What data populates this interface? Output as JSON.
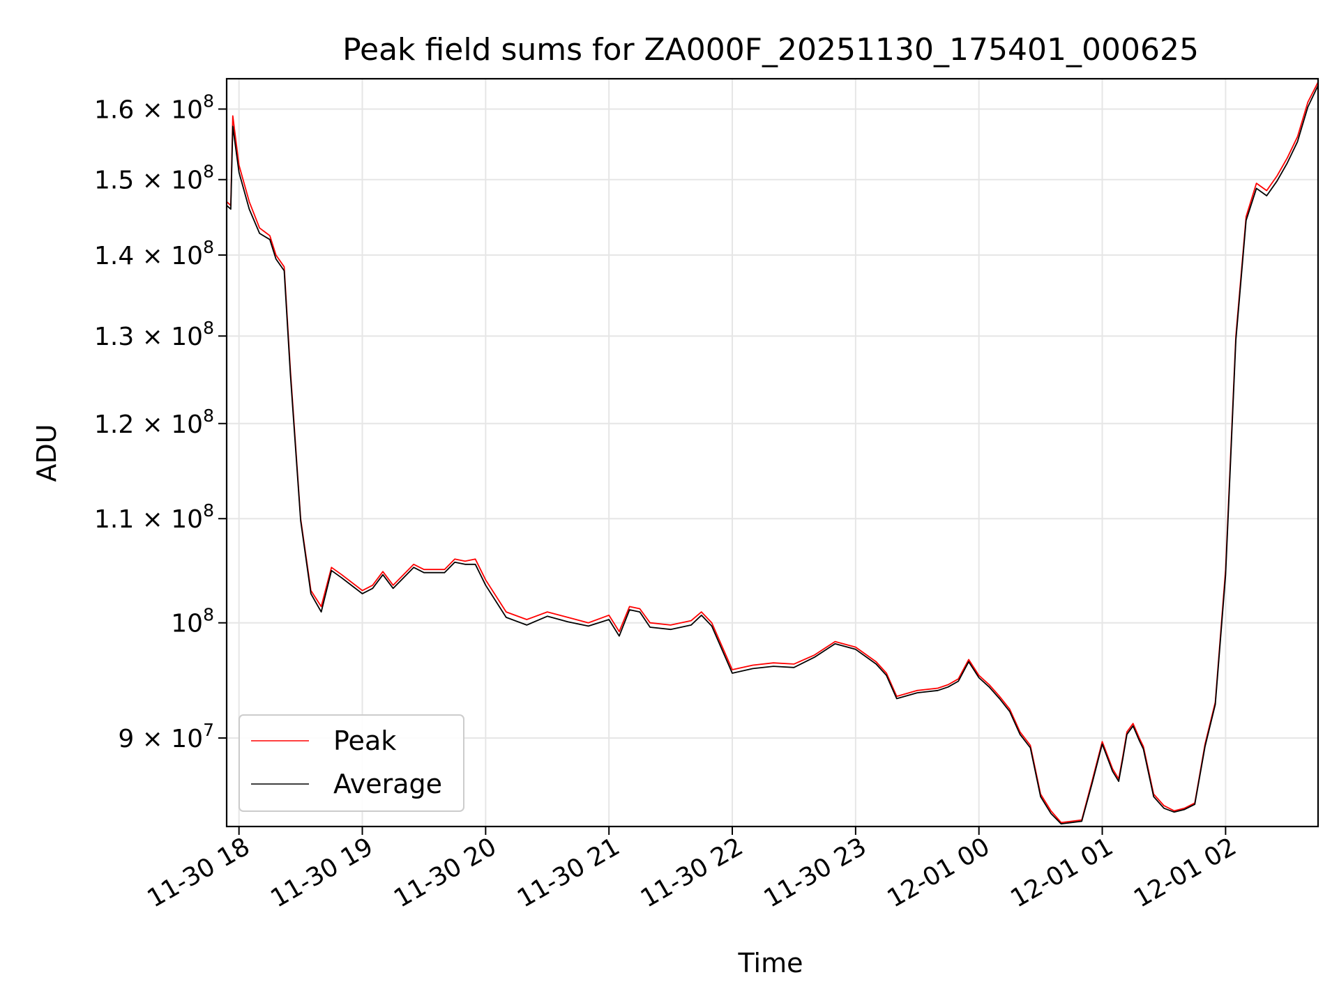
{
  "chart_data": {
    "type": "line",
    "title": "Peak field sums for ZA000F_20251130_175401_000625",
    "xlabel": "Time",
    "ylabel": "ADU",
    "yscale": "log",
    "ylim": [
      83000000,
      164500000
    ],
    "xlim": [
      "2025-11-30 17:54",
      "2025-12-01 02:45"
    ],
    "x_ticks": [
      "11-30 18",
      "11-30 19",
      "11-30 20",
      "11-30 21",
      "11-30 22",
      "11-30 23",
      "12-01 00",
      "12-01 01",
      "12-01 02"
    ],
    "y_ticks": [
      {
        "value": 90000000,
        "mantissa": "9",
        "exponent": "7"
      },
      {
        "value": 100000000,
        "mantissa": "",
        "exponent": "8"
      },
      {
        "value": 110000000,
        "mantissa": "1.1",
        "exponent": "8"
      },
      {
        "value": 120000000,
        "mantissa": "1.2",
        "exponent": "8"
      },
      {
        "value": 130000000,
        "mantissa": "1.3",
        "exponent": "8"
      },
      {
        "value": 140000000,
        "mantissa": "1.4",
        "exponent": "8"
      },
      {
        "value": 150000000,
        "mantissa": "1.5",
        "exponent": "8"
      },
      {
        "value": 160000000,
        "mantissa": "1.6",
        "exponent": "8"
      }
    ],
    "grid": true,
    "legend_position": "lower-left",
    "series": [
      {
        "name": "Peak",
        "color": "#ff0000",
        "x": [
          "2025-11-30 17:54",
          "2025-11-30 17:56",
          "2025-11-30 17:57",
          "2025-11-30 18:00",
          "2025-11-30 18:05",
          "2025-11-30 18:10",
          "2025-11-30 18:15",
          "2025-11-30 18:18",
          "2025-11-30 18:22",
          "2025-11-30 18:25",
          "2025-11-30 18:30",
          "2025-11-30 18:35",
          "2025-11-30 18:40",
          "2025-11-30 18:45",
          "2025-11-30 18:50",
          "2025-11-30 19:00",
          "2025-11-30 19:05",
          "2025-11-30 19:10",
          "2025-11-30 19:15",
          "2025-11-30 19:20",
          "2025-11-30 19:25",
          "2025-11-30 19:30",
          "2025-11-30 19:40",
          "2025-11-30 19:45",
          "2025-11-30 19:50",
          "2025-11-30 19:55",
          "2025-11-30 20:00",
          "2025-11-30 20:10",
          "2025-11-30 20:20",
          "2025-11-30 20:30",
          "2025-11-30 20:40",
          "2025-11-30 20:50",
          "2025-11-30 21:00",
          "2025-11-30 21:05",
          "2025-11-30 21:10",
          "2025-11-30 21:15",
          "2025-11-30 21:20",
          "2025-11-30 21:30",
          "2025-11-30 21:40",
          "2025-11-30 21:45",
          "2025-11-30 21:50",
          "2025-11-30 22:00",
          "2025-11-30 22:10",
          "2025-11-30 22:20",
          "2025-11-30 22:30",
          "2025-11-30 22:40",
          "2025-11-30 22:50",
          "2025-11-30 23:00",
          "2025-11-30 23:10",
          "2025-11-30 23:15",
          "2025-11-30 23:20",
          "2025-11-30 23:30",
          "2025-11-30 23:40",
          "2025-11-30 23:45",
          "2025-11-30 23:50",
          "2025-11-30 23:55",
          "2025-12-01 00:00",
          "2025-12-01 00:05",
          "2025-12-01 00:10",
          "2025-12-01 00:15",
          "2025-12-01 00:20",
          "2025-12-01 00:25",
          "2025-12-01 00:30",
          "2025-12-01 00:35",
          "2025-12-01 00:40",
          "2025-12-01 00:45",
          "2025-12-01 00:50",
          "2025-12-01 00:55",
          "2025-12-01 01:00",
          "2025-12-01 01:05",
          "2025-12-01 01:08",
          "2025-12-01 01:10",
          "2025-12-01 01:12",
          "2025-12-01 01:15",
          "2025-12-01 01:18",
          "2025-12-01 01:20",
          "2025-12-01 01:25",
          "2025-12-01 01:30",
          "2025-12-01 01:35",
          "2025-12-01 01:40",
          "2025-12-01 01:45",
          "2025-12-01 01:50",
          "2025-12-01 01:55",
          "2025-12-01 02:00",
          "2025-12-01 02:05",
          "2025-12-01 02:10",
          "2025-12-01 02:15",
          "2025-12-01 02:20",
          "2025-12-01 02:25",
          "2025-12-01 02:30",
          "2025-12-01 02:35",
          "2025-12-01 02:40",
          "2025-12-01 02:45"
        ],
        "y": [
          147000000,
          146500000,
          159000000,
          152000000,
          147000000,
          143500000,
          142500000,
          140000000,
          138500000,
          126000000,
          110000000,
          103000000,
          101500000,
          105200000,
          104500000,
          103000000,
          103500000,
          104800000,
          103500000,
          104500000,
          105500000,
          105000000,
          105000000,
          106000000,
          105800000,
          106000000,
          104000000,
          101000000,
          100300000,
          101000000,
          100500000,
          100000000,
          100700000,
          99200000,
          101500000,
          101300000,
          100000000,
          99800000,
          100200000,
          101000000,
          100000000,
          95800000,
          96200000,
          96400000,
          96300000,
          97100000,
          98300000,
          97800000,
          96500000,
          95500000,
          93500000,
          94000000,
          94200000,
          94500000,
          95000000,
          96700000,
          95300000,
          94500000,
          93500000,
          92400000,
          90500000,
          89400000,
          85500000,
          84200000,
          83300000,
          83400000,
          83500000,
          86500000,
          89700000,
          87500000,
          86700000,
          88500000,
          90500000,
          91200000,
          90000000,
          89300000,
          85500000,
          84600000,
          84200000,
          84400000,
          84800000,
          89500000,
          93000000,
          105000000,
          130000000,
          145000000,
          149500000,
          148500000,
          150500000,
          153000000,
          156000000,
          161000000,
          164000000
        ]
      },
      {
        "name": "Average",
        "color": "#000000",
        "x": [
          "2025-11-30 17:54",
          "2025-11-30 17:56",
          "2025-11-30 17:57",
          "2025-11-30 18:00",
          "2025-11-30 18:05",
          "2025-11-30 18:10",
          "2025-11-30 18:15",
          "2025-11-30 18:18",
          "2025-11-30 18:22",
          "2025-11-30 18:25",
          "2025-11-30 18:30",
          "2025-11-30 18:35",
          "2025-11-30 18:40",
          "2025-11-30 18:45",
          "2025-11-30 18:50",
          "2025-11-30 19:00",
          "2025-11-30 19:05",
          "2025-11-30 19:10",
          "2025-11-30 19:15",
          "2025-11-30 19:20",
          "2025-11-30 19:25",
          "2025-11-30 19:30",
          "2025-11-30 19:40",
          "2025-11-30 19:45",
          "2025-11-30 19:50",
          "2025-11-30 19:55",
          "2025-11-30 20:00",
          "2025-11-30 20:10",
          "2025-11-30 20:20",
          "2025-11-30 20:30",
          "2025-11-30 20:40",
          "2025-11-30 20:50",
          "2025-11-30 21:00",
          "2025-11-30 21:05",
          "2025-11-30 21:10",
          "2025-11-30 21:15",
          "2025-11-30 21:20",
          "2025-11-30 21:30",
          "2025-11-30 21:40",
          "2025-11-30 21:45",
          "2025-11-30 21:50",
          "2025-11-30 22:00",
          "2025-11-30 22:10",
          "2025-11-30 22:20",
          "2025-11-30 22:30",
          "2025-11-30 22:40",
          "2025-11-30 22:50",
          "2025-11-30 23:00",
          "2025-11-30 23:10",
          "2025-11-30 23:15",
          "2025-11-30 23:20",
          "2025-11-30 23:30",
          "2025-11-30 23:40",
          "2025-11-30 23:45",
          "2025-11-30 23:50",
          "2025-11-30 23:55",
          "2025-12-01 00:00",
          "2025-12-01 00:05",
          "2025-12-01 00:10",
          "2025-12-01 00:15",
          "2025-12-01 00:20",
          "2025-12-01 00:25",
          "2025-12-01 00:30",
          "2025-12-01 00:35",
          "2025-12-01 00:40",
          "2025-12-01 00:45",
          "2025-12-01 00:50",
          "2025-12-01 00:55",
          "2025-12-01 01:00",
          "2025-12-01 01:05",
          "2025-12-01 01:08",
          "2025-12-01 01:10",
          "2025-12-01 01:12",
          "2025-12-01 01:15",
          "2025-12-01 01:18",
          "2025-12-01 01:20",
          "2025-12-01 01:25",
          "2025-12-01 01:30",
          "2025-12-01 01:35",
          "2025-12-01 01:40",
          "2025-12-01 01:45",
          "2025-12-01 01:50",
          "2025-12-01 01:55",
          "2025-12-01 02:00",
          "2025-12-01 02:05",
          "2025-12-01 02:10",
          "2025-12-01 02:15",
          "2025-12-01 02:20",
          "2025-12-01 02:25",
          "2025-12-01 02:30",
          "2025-12-01 02:35",
          "2025-12-01 02:40",
          "2025-12-01 02:45"
        ],
        "y": [
          146500000,
          146000000,
          157500000,
          151000000,
          146000000,
          142800000,
          142000000,
          139500000,
          138000000,
          125500000,
          109800000,
          102700000,
          101000000,
          104900000,
          104200000,
          102700000,
          103200000,
          104500000,
          103200000,
          104200000,
          105200000,
          104700000,
          104700000,
          105700000,
          105500000,
          105500000,
          103500000,
          100500000,
          99800000,
          100600000,
          100100000,
          99700000,
          100300000,
          98800000,
          101200000,
          101000000,
          99600000,
          99400000,
          99800000,
          100700000,
          99700000,
          95500000,
          95900000,
          96100000,
          96000000,
          96900000,
          98100000,
          97600000,
          96300000,
          95300000,
          93300000,
          93800000,
          94000000,
          94300000,
          94800000,
          96500000,
          95100000,
          94300000,
          93300000,
          92200000,
          90300000,
          89200000,
          85300000,
          84000000,
          83200000,
          83300000,
          83400000,
          86300000,
          89500000,
          87300000,
          86500000,
          88300000,
          90300000,
          91000000,
          89800000,
          89100000,
          85300000,
          84400000,
          84100000,
          84300000,
          84700000,
          89300000,
          92800000,
          104500000,
          129500000,
          144500000,
          148800000,
          147800000,
          149800000,
          152300000,
          155300000,
          160300000,
          163500000
        ]
      }
    ]
  }
}
